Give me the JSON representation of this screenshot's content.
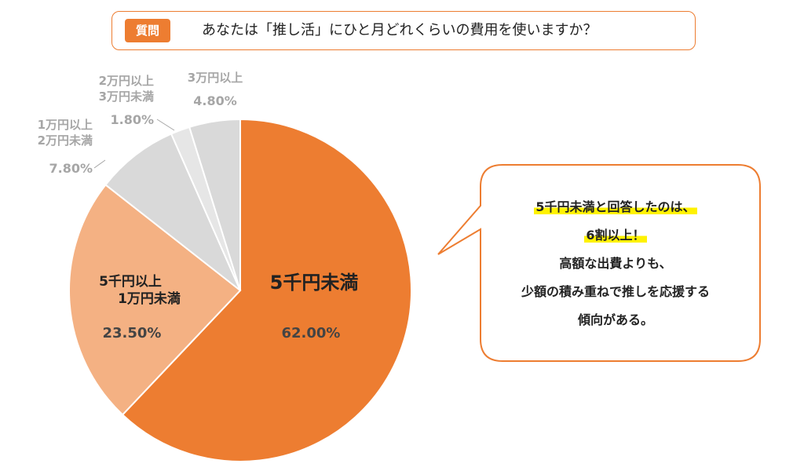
{
  "header": {
    "badge": "質問",
    "question": "あなたは「推し活」にひと月どれくらいの費用を使いますか？"
  },
  "chart_data": {
    "type": "pie",
    "title": "",
    "start_angle_deg": 0,
    "direction": "clockwise",
    "slices": [
      {
        "label_lines": [
          "5千円未満"
        ],
        "value": 62.0,
        "value_label": "62.00%",
        "color": "#ED7D31",
        "label_color": "#222222",
        "value_color": "#444444"
      },
      {
        "label_lines": [
          "5千円以上",
          "1万円未満"
        ],
        "value": 23.5,
        "value_label": "23.50%",
        "color": "#F4B183",
        "label_color": "#222222",
        "value_color": "#444444"
      },
      {
        "label_lines": [
          "1万円以上",
          "2万円未満"
        ],
        "value": 7.8,
        "value_label": "7.80%",
        "color": "#D9D9D9",
        "label_color": "#A6A6A6",
        "value_color": "#A6A6A6"
      },
      {
        "label_lines": [
          "2万円以上",
          "3万円未満"
        ],
        "value": 1.8,
        "value_label": "1.80%",
        "color": "#E6E6E6",
        "label_color": "#A6A6A6",
        "value_color": "#A6A6A6"
      },
      {
        "label_lines": [
          "3万円以上"
        ],
        "value": 4.8,
        "value_label": "4.80%",
        "color": "#D9D9D9",
        "label_color": "#A6A6A6",
        "value_color": "#A6A6A6"
      }
    ]
  },
  "callout": {
    "lines": [
      {
        "text": "5千円未満と回答したのは、",
        "highlight": true
      },
      {
        "text": "6割以上！",
        "highlight": true
      },
      {
        "text": "高額な出費よりも、",
        "highlight": false
      },
      {
        "text": "少額の積み重ねで推しを応援する",
        "highlight": false
      },
      {
        "text": "傾向がある。",
        "highlight": false
      }
    ],
    "border_color": "#ED7D31"
  }
}
